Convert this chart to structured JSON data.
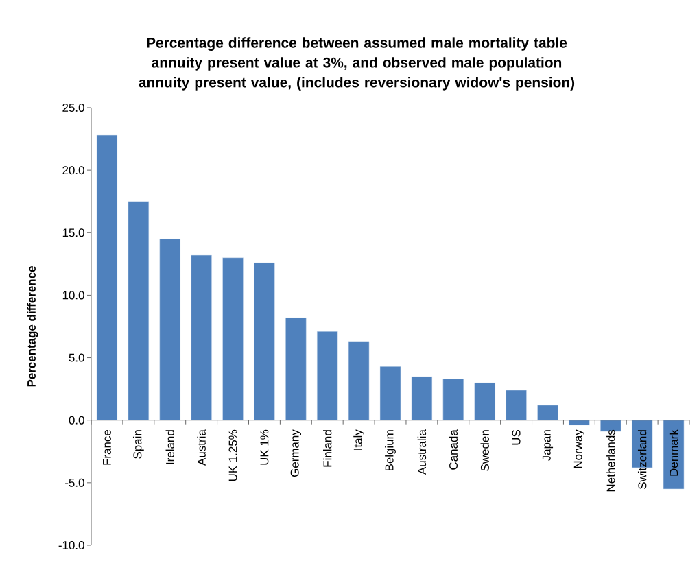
{
  "chart_data": {
    "type": "bar",
    "title": "Percentage difference between assumed male mortality table annuity present value at 3%, and observed male population annuity present value, (includes reversionary widow's pension)",
    "ylabel": "Percentage difference",
    "categories": [
      "France",
      "Spain",
      "Ireland",
      "Austria",
      "UK 1.25%",
      "UK 1%",
      "Germany",
      "Finland",
      "Italy",
      "Belgium",
      "Australia",
      "Canada",
      "Sweden",
      "US",
      "Japan",
      "Norway",
      "Netherlands",
      "Switzerland",
      "Denmark"
    ],
    "values": [
      22.8,
      17.5,
      14.5,
      13.2,
      13.0,
      12.6,
      8.2,
      7.1,
      6.3,
      4.3,
      3.5,
      3.3,
      3.0,
      2.4,
      1.2,
      -0.4,
      -0.9,
      -3.8,
      -5.5
    ],
    "color": "#4f81bd",
    "ylim": [
      -10,
      25
    ],
    "yticks": [
      {
        "value": -10,
        "label": "-10.0"
      },
      {
        "value": -5,
        "label": "-5.0"
      },
      {
        "value": 0,
        "label": "0.0"
      },
      {
        "value": 5,
        "label": "5.0"
      },
      {
        "value": 10,
        "label": "10.0"
      },
      {
        "value": 15,
        "label": "15.0"
      },
      {
        "value": 20,
        "label": "20.0"
      },
      {
        "value": 25,
        "label": "25.0"
      }
    ],
    "grid": false
  }
}
